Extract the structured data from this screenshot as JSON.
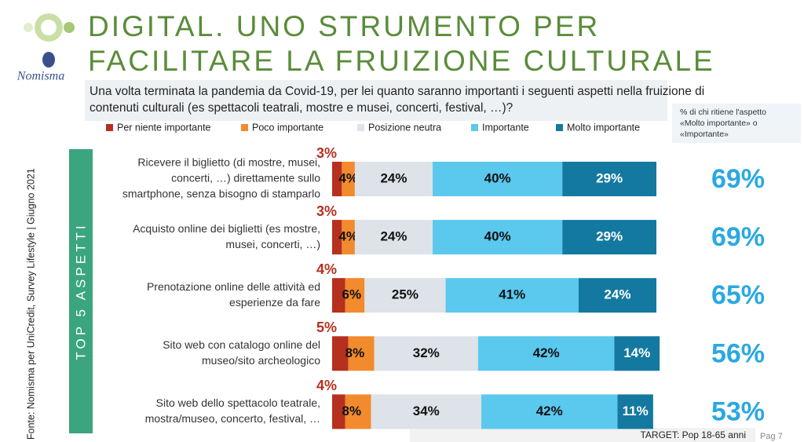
{
  "chart_data": {
    "type": "stacked_barh",
    "title": [
      "DIGITAL. UNO STRUMENTO PER",
      "FACILITARE LA FRUIZIONE CULTURALE"
    ],
    "logo": "Nomisma",
    "subtitle": [
      "Una volta terminata la pandemia da Covid-19, per lei quanto saranno importanti i seguenti aspetti nella fruizione di",
      "contenuti culturali (es spettacoli teatrali, mostre e musei, concerti, festival, …)?"
    ],
    "source": "Fonte: Nomisma per UniCredit, Survey Lifestyle | Giugno 2021",
    "group_label": "TOP 5 ASPETTI",
    "note": [
      "% di chi ritiene l'aspetto",
      "«Molto importante» o",
      "«Importante»"
    ],
    "target": "TARGET: Pop 18-65 anni",
    "page": "Pag 7",
    "categories": [
      [
        "Ricevere il biglietto (di mostre, musei,",
        "concerti, …) direttamente sullo",
        "smartphone, senza bisogno di stamparlo"
      ],
      [
        "Acquisto online dei biglietti (es mostre,",
        "musei, concerti, …)"
      ],
      [
        "Prenotazione online delle attività ed",
        "esperienze da fare"
      ],
      [
        "Sito web con catalogo online del",
        "museo/sito archeologico"
      ],
      [
        "Sito web dello spettacolo teatrale,",
        "mostra/museo, concerto, festival, …"
      ]
    ],
    "xlim": [
      0,
      100
    ],
    "series": [
      {
        "name": "Per niente importante",
        "color": "#b5301f",
        "values": [
          3,
          3,
          4,
          5,
          4
        ],
        "value_labels": [
          "3%",
          "3%",
          "4%",
          "5%",
          "4%"
        ]
      },
      {
        "name": "Poco importante",
        "color": "#f28a2e",
        "values": [
          4,
          4,
          6,
          8,
          8
        ],
        "value_labels": [
          "4%",
          "4%",
          "6%",
          "8%",
          "8%"
        ]
      },
      {
        "name": "Posizione neutra",
        "color": "#dde3e8",
        "values": [
          24,
          24,
          25,
          32,
          34
        ],
        "value_labels": [
          "24%",
          "24%",
          "25%",
          "32%",
          "34%"
        ]
      },
      {
        "name": "Importante",
        "color": "#5bc8ee",
        "values": [
          40,
          40,
          41,
          42,
          42
        ],
        "value_labels": [
          "40%",
          "40%",
          "41%",
          "42%",
          "42%"
        ]
      },
      {
        "name": "Molto importante",
        "color": "#1479a0",
        "values": [
          29,
          29,
          24,
          14,
          11
        ],
        "value_labels": [
          "29%",
          "29%",
          "24%",
          "14%",
          "11%"
        ]
      }
    ],
    "top2": {
      "values": [
        69,
        69,
        65,
        56,
        53
      ],
      "value_labels": [
        "69%",
        "69%",
        "65%",
        "56%",
        "53%"
      ],
      "color": "#2aa9e0"
    }
  }
}
